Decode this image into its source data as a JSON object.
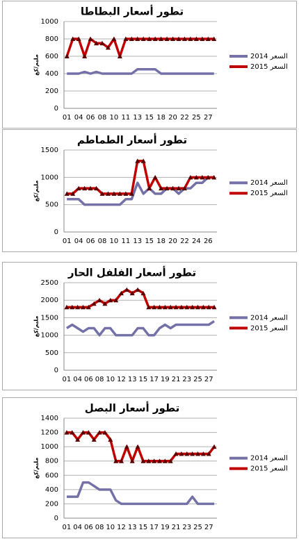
{
  "chart_data": [
    {
      "type": "line",
      "title": "تطور أسعار البطاطا",
      "y_label": "مليم/كغ",
      "categories": [
        "01",
        null,
        "04",
        null,
        "06",
        null,
        "08",
        null,
        "10",
        null,
        "11",
        null,
        "13",
        null,
        "15",
        null,
        "18",
        null,
        "20",
        null,
        "22",
        null,
        "25",
        null,
        "27",
        null
      ],
      "series": [
        {
          "name": "السعر 2014",
          "color": "#7471a8",
          "values": [
            400,
            400,
            400,
            420,
            400,
            420,
            400,
            400,
            400,
            400,
            400,
            400,
            450,
            450,
            450,
            450,
            400,
            400,
            400,
            400,
            400,
            400,
            400,
            400,
            400,
            400
          ]
        },
        {
          "name": "السعر 2015",
          "color": "#c00000",
          "marker": "triangle",
          "values": [
            600,
            800,
            800,
            600,
            800,
            750,
            750,
            700,
            800,
            600,
            800,
            800,
            800,
            800,
            800,
            800,
            800,
            800,
            800,
            800,
            800,
            800,
            800,
            800,
            800,
            800
          ]
        }
      ],
      "ylim": [
        0,
        1000
      ],
      "yticks": [
        0,
        200,
        400,
        600,
        800,
        1000
      ],
      "grid": true
    },
    {
      "type": "line",
      "title": "تطور أسعار الطماطم",
      "y_label": "مليم/كغ",
      "categories": [
        "01",
        null,
        "04",
        null,
        "06",
        null,
        "08",
        null,
        "10",
        null,
        "11",
        null,
        "13",
        null,
        "15",
        null,
        "18",
        null,
        "20",
        null,
        "22",
        null,
        "24",
        null,
        "26",
        null
      ],
      "series": [
        {
          "name": "السعر 2014",
          "color": "#7471a8",
          "values": [
            600,
            600,
            600,
            500,
            500,
            500,
            500,
            500,
            500,
            500,
            600,
            600,
            900,
            700,
            800,
            700,
            700,
            800,
            800,
            700,
            800,
            800,
            900,
            900,
            1000,
            1000
          ]
        },
        {
          "name": "السعر 2015",
          "color": "#c00000",
          "marker": "triangle",
          "values": [
            700,
            700,
            800,
            800,
            800,
            800,
            700,
            700,
            700,
            700,
            700,
            700,
            1300,
            1300,
            800,
            1000,
            800,
            800,
            800,
            800,
            800,
            1000,
            1000,
            1000,
            1000,
            1000
          ]
        }
      ],
      "ylim": [
        0,
        1500
      ],
      "yticks": [
        0,
        500,
        1000,
        1500
      ],
      "grid": true
    },
    {
      "type": "line",
      "title": "تطور أسعار الفلفل الحار",
      "y_label": "مليم/كغ",
      "categories": [
        "01",
        null,
        "04",
        null,
        "06",
        null,
        "08",
        null,
        "10",
        null,
        "12",
        null,
        "13",
        null,
        "15",
        null,
        "17",
        null,
        "19",
        null,
        "21",
        null,
        "23",
        null,
        "25",
        null,
        "27",
        null
      ],
      "series": [
        {
          "name": "السعر 2014",
          "color": "#7471a8",
          "values": [
            1200,
            1300,
            1200,
            1100,
            1200,
            1200,
            1000,
            1200,
            1200,
            1000,
            1000,
            1000,
            1000,
            1200,
            1200,
            1000,
            1000,
            1200,
            1300,
            1200,
            1300,
            1300,
            1300,
            1300,
            1300,
            1300,
            1300,
            1400
          ]
        },
        {
          "name": "السعر 2015",
          "color": "#c00000",
          "marker": "triangle",
          "values": [
            1800,
            1800,
            1800,
            1800,
            1800,
            1900,
            2000,
            1900,
            2000,
            2000,
            2200,
            2300,
            2200,
            2300,
            2200,
            1800,
            1800,
            1800,
            1800,
            1800,
            1800,
            1800,
            1800,
            1800,
            1800,
            1800,
            1800,
            1800
          ]
        }
      ],
      "ylim": [
        0,
        2500
      ],
      "yticks": [
        0,
        500,
        1000,
        1500,
        2000,
        2500
      ],
      "grid": true
    },
    {
      "type": "line",
      "title": "تطور أسعار البصل",
      "y_label": "مليم/كغ",
      "categories": [
        "01",
        null,
        "04",
        null,
        "06",
        null,
        "08",
        null,
        "10",
        null,
        "12",
        null,
        "13",
        null,
        "15",
        null,
        "17",
        null,
        "19",
        null,
        "21",
        null,
        "23",
        null,
        "25",
        null,
        "27",
        null
      ],
      "series": [
        {
          "name": "السعر 2014",
          "color": "#7471a8",
          "values": [
            300,
            300,
            300,
            500,
            500,
            450,
            400,
            400,
            400,
            250,
            200,
            200,
            200,
            200,
            200,
            200,
            200,
            200,
            200,
            200,
            200,
            200,
            200,
            300,
            200,
            200,
            200,
            200
          ]
        },
        {
          "name": "السعر 2015",
          "color": "#c00000",
          "marker": "triangle",
          "values": [
            1200,
            1200,
            1100,
            1200,
            1200,
            1100,
            1200,
            1200,
            1100,
            800,
            800,
            1000,
            800,
            1000,
            800,
            800,
            800,
            800,
            800,
            800,
            900,
            900,
            900,
            900,
            900,
            900,
            900,
            1000
          ]
        }
      ],
      "ylim": [
        0,
        1400
      ],
      "yticks": [
        0,
        200,
        400,
        600,
        800,
        1000,
        1200,
        1400
      ],
      "grid": true
    }
  ]
}
